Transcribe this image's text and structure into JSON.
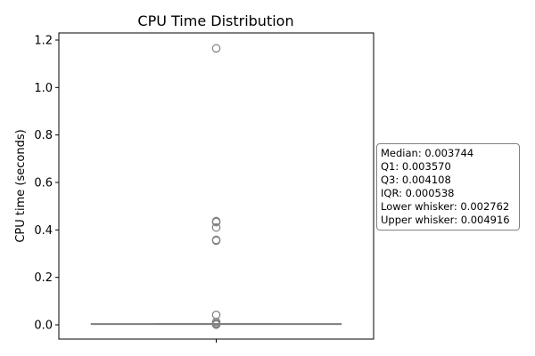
{
  "chart_data": {
    "type": "box",
    "title": "CPU Time Distribution",
    "xlabel": "",
    "ylabel": "CPU time (seconds)",
    "ylim": [
      -0.06,
      1.23
    ],
    "yticks": [
      0.0,
      0.2,
      0.4,
      0.6,
      0.8,
      1.0,
      1.2
    ],
    "ytick_labels": [
      "0.0",
      "0.2",
      "0.4",
      "0.6",
      "0.8",
      "1.0",
      "1.2"
    ],
    "grid": false,
    "box": {
      "median": 0.003744,
      "q1": 0.00357,
      "q3": 0.004108,
      "lower_whisker": 0.002762,
      "upper_whisker": 0.004916
    },
    "outliers": [
      1.165,
      0.437,
      0.433,
      0.41,
      0.358,
      0.355,
      0.042,
      0.012,
      0.006,
      0.0015,
      0.0008
    ],
    "colors": {
      "box": "#808080",
      "outlier": "#808080",
      "text": "#000000"
    }
  },
  "stats_box": {
    "lines": [
      "Median: 0.003744",
      "Q1: 0.003570",
      "Q3: 0.004108",
      "IQR: 0.000538",
      "Lower whisker: 0.002762",
      "Upper whisker: 0.004916"
    ]
  }
}
